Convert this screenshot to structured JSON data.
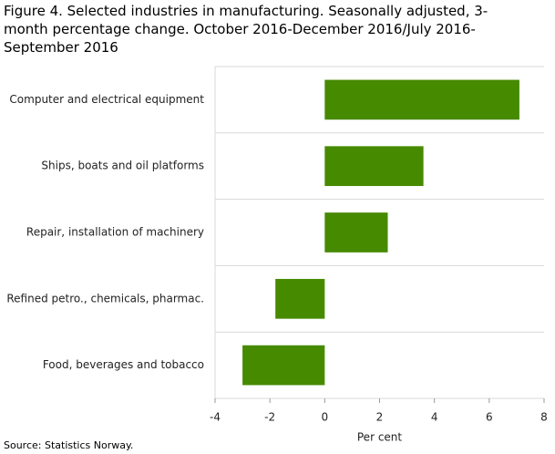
{
  "chart_data": {
    "type": "bar",
    "orientation": "horizontal",
    "title": "Figure 4. Selected industries in manufacturing. Seasonally adjusted, 3-month percentage change. October 2016-December 2016/July 2016-September 2016",
    "categories": [
      "Computer and electrical equipment",
      "Ships, boats and oil platforms",
      "Repair, installation of machinery",
      "Refined petro., chemicals, pharmac.",
      "Food, beverages and tobacco"
    ],
    "values": [
      7.1,
      3.6,
      2.3,
      -1.8,
      -3.0
    ],
    "color": "#468a00",
    "xlim": [
      -4,
      8
    ],
    "xticks": [
      -4,
      -2,
      0,
      2,
      4,
      6,
      8
    ],
    "x_label": "Per cent",
    "source": "Source: Statistics Norway."
  }
}
